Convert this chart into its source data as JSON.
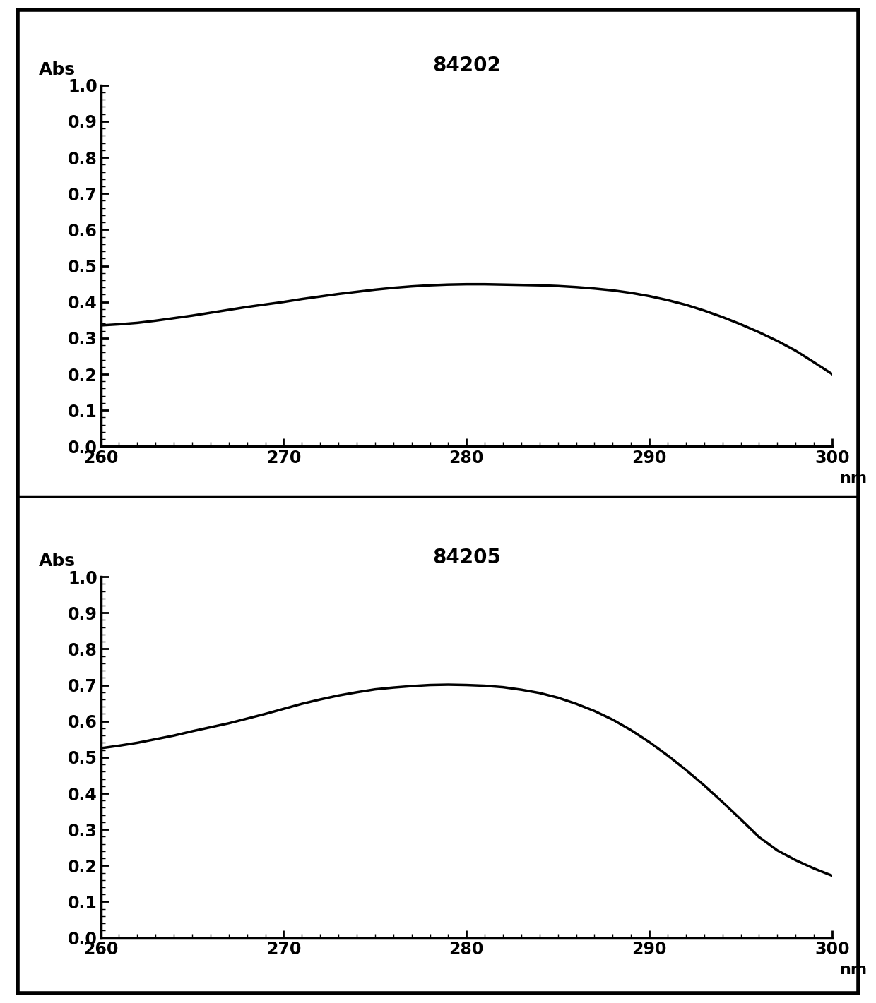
{
  "plot1": {
    "title": "84202",
    "x_label": "nm",
    "y_label": "Abs",
    "xlim": [
      260,
      300
    ],
    "ylim": [
      0.0,
      1.0
    ],
    "xticks": [
      260,
      270,
      280,
      290,
      300
    ],
    "yticks": [
      0.0,
      0.1,
      0.2,
      0.3,
      0.4,
      0.5,
      0.6,
      0.7,
      0.8,
      0.9,
      1.0
    ],
    "curve_x": [
      260,
      261,
      262,
      263,
      264,
      265,
      266,
      267,
      268,
      269,
      270,
      271,
      272,
      273,
      274,
      275,
      276,
      277,
      278,
      279,
      280,
      281,
      282,
      283,
      284,
      285,
      286,
      287,
      288,
      289,
      290,
      291,
      292,
      293,
      294,
      295,
      296,
      297,
      298,
      299,
      300
    ],
    "curve_y": [
      0.335,
      0.338,
      0.342,
      0.348,
      0.355,
      0.362,
      0.37,
      0.378,
      0.386,
      0.393,
      0.4,
      0.408,
      0.415,
      0.422,
      0.428,
      0.434,
      0.439,
      0.443,
      0.446,
      0.448,
      0.449,
      0.449,
      0.448,
      0.447,
      0.446,
      0.444,
      0.441,
      0.437,
      0.432,
      0.425,
      0.416,
      0.405,
      0.392,
      0.376,
      0.358,
      0.338,
      0.316,
      0.292,
      0.265,
      0.233,
      0.2
    ]
  },
  "plot2": {
    "title": "84205",
    "x_label": "nm",
    "y_label": "Abs",
    "xlim": [
      260,
      300
    ],
    "ylim": [
      0.0,
      1.0
    ],
    "xticks": [
      260,
      270,
      280,
      290,
      300
    ],
    "yticks": [
      0.0,
      0.1,
      0.2,
      0.3,
      0.4,
      0.5,
      0.6,
      0.7,
      0.8,
      0.9,
      1.0
    ],
    "curve_x": [
      260,
      261,
      262,
      263,
      264,
      265,
      266,
      267,
      268,
      269,
      270,
      271,
      272,
      273,
      274,
      275,
      276,
      277,
      278,
      279,
      280,
      281,
      282,
      283,
      284,
      285,
      286,
      287,
      288,
      289,
      290,
      291,
      292,
      293,
      294,
      295,
      296,
      297,
      298,
      299,
      300
    ],
    "curve_y": [
      0.525,
      0.532,
      0.54,
      0.55,
      0.56,
      0.572,
      0.583,
      0.594,
      0.607,
      0.62,
      0.634,
      0.648,
      0.66,
      0.671,
      0.68,
      0.688,
      0.693,
      0.697,
      0.7,
      0.701,
      0.7,
      0.698,
      0.694,
      0.687,
      0.678,
      0.665,
      0.648,
      0.628,
      0.604,
      0.575,
      0.542,
      0.505,
      0.465,
      0.422,
      0.376,
      0.328,
      0.279,
      0.242,
      0.215,
      0.192,
      0.172
    ]
  },
  "line_color": "#000000",
  "line_width": 2.5,
  "background_color": "#ffffff",
  "border_color": "#000000",
  "title_fontsize": 20,
  "label_fontsize": 18,
  "tick_fontsize": 17,
  "figure_background": "#ffffff",
  "outer_border_linewidth": 4
}
